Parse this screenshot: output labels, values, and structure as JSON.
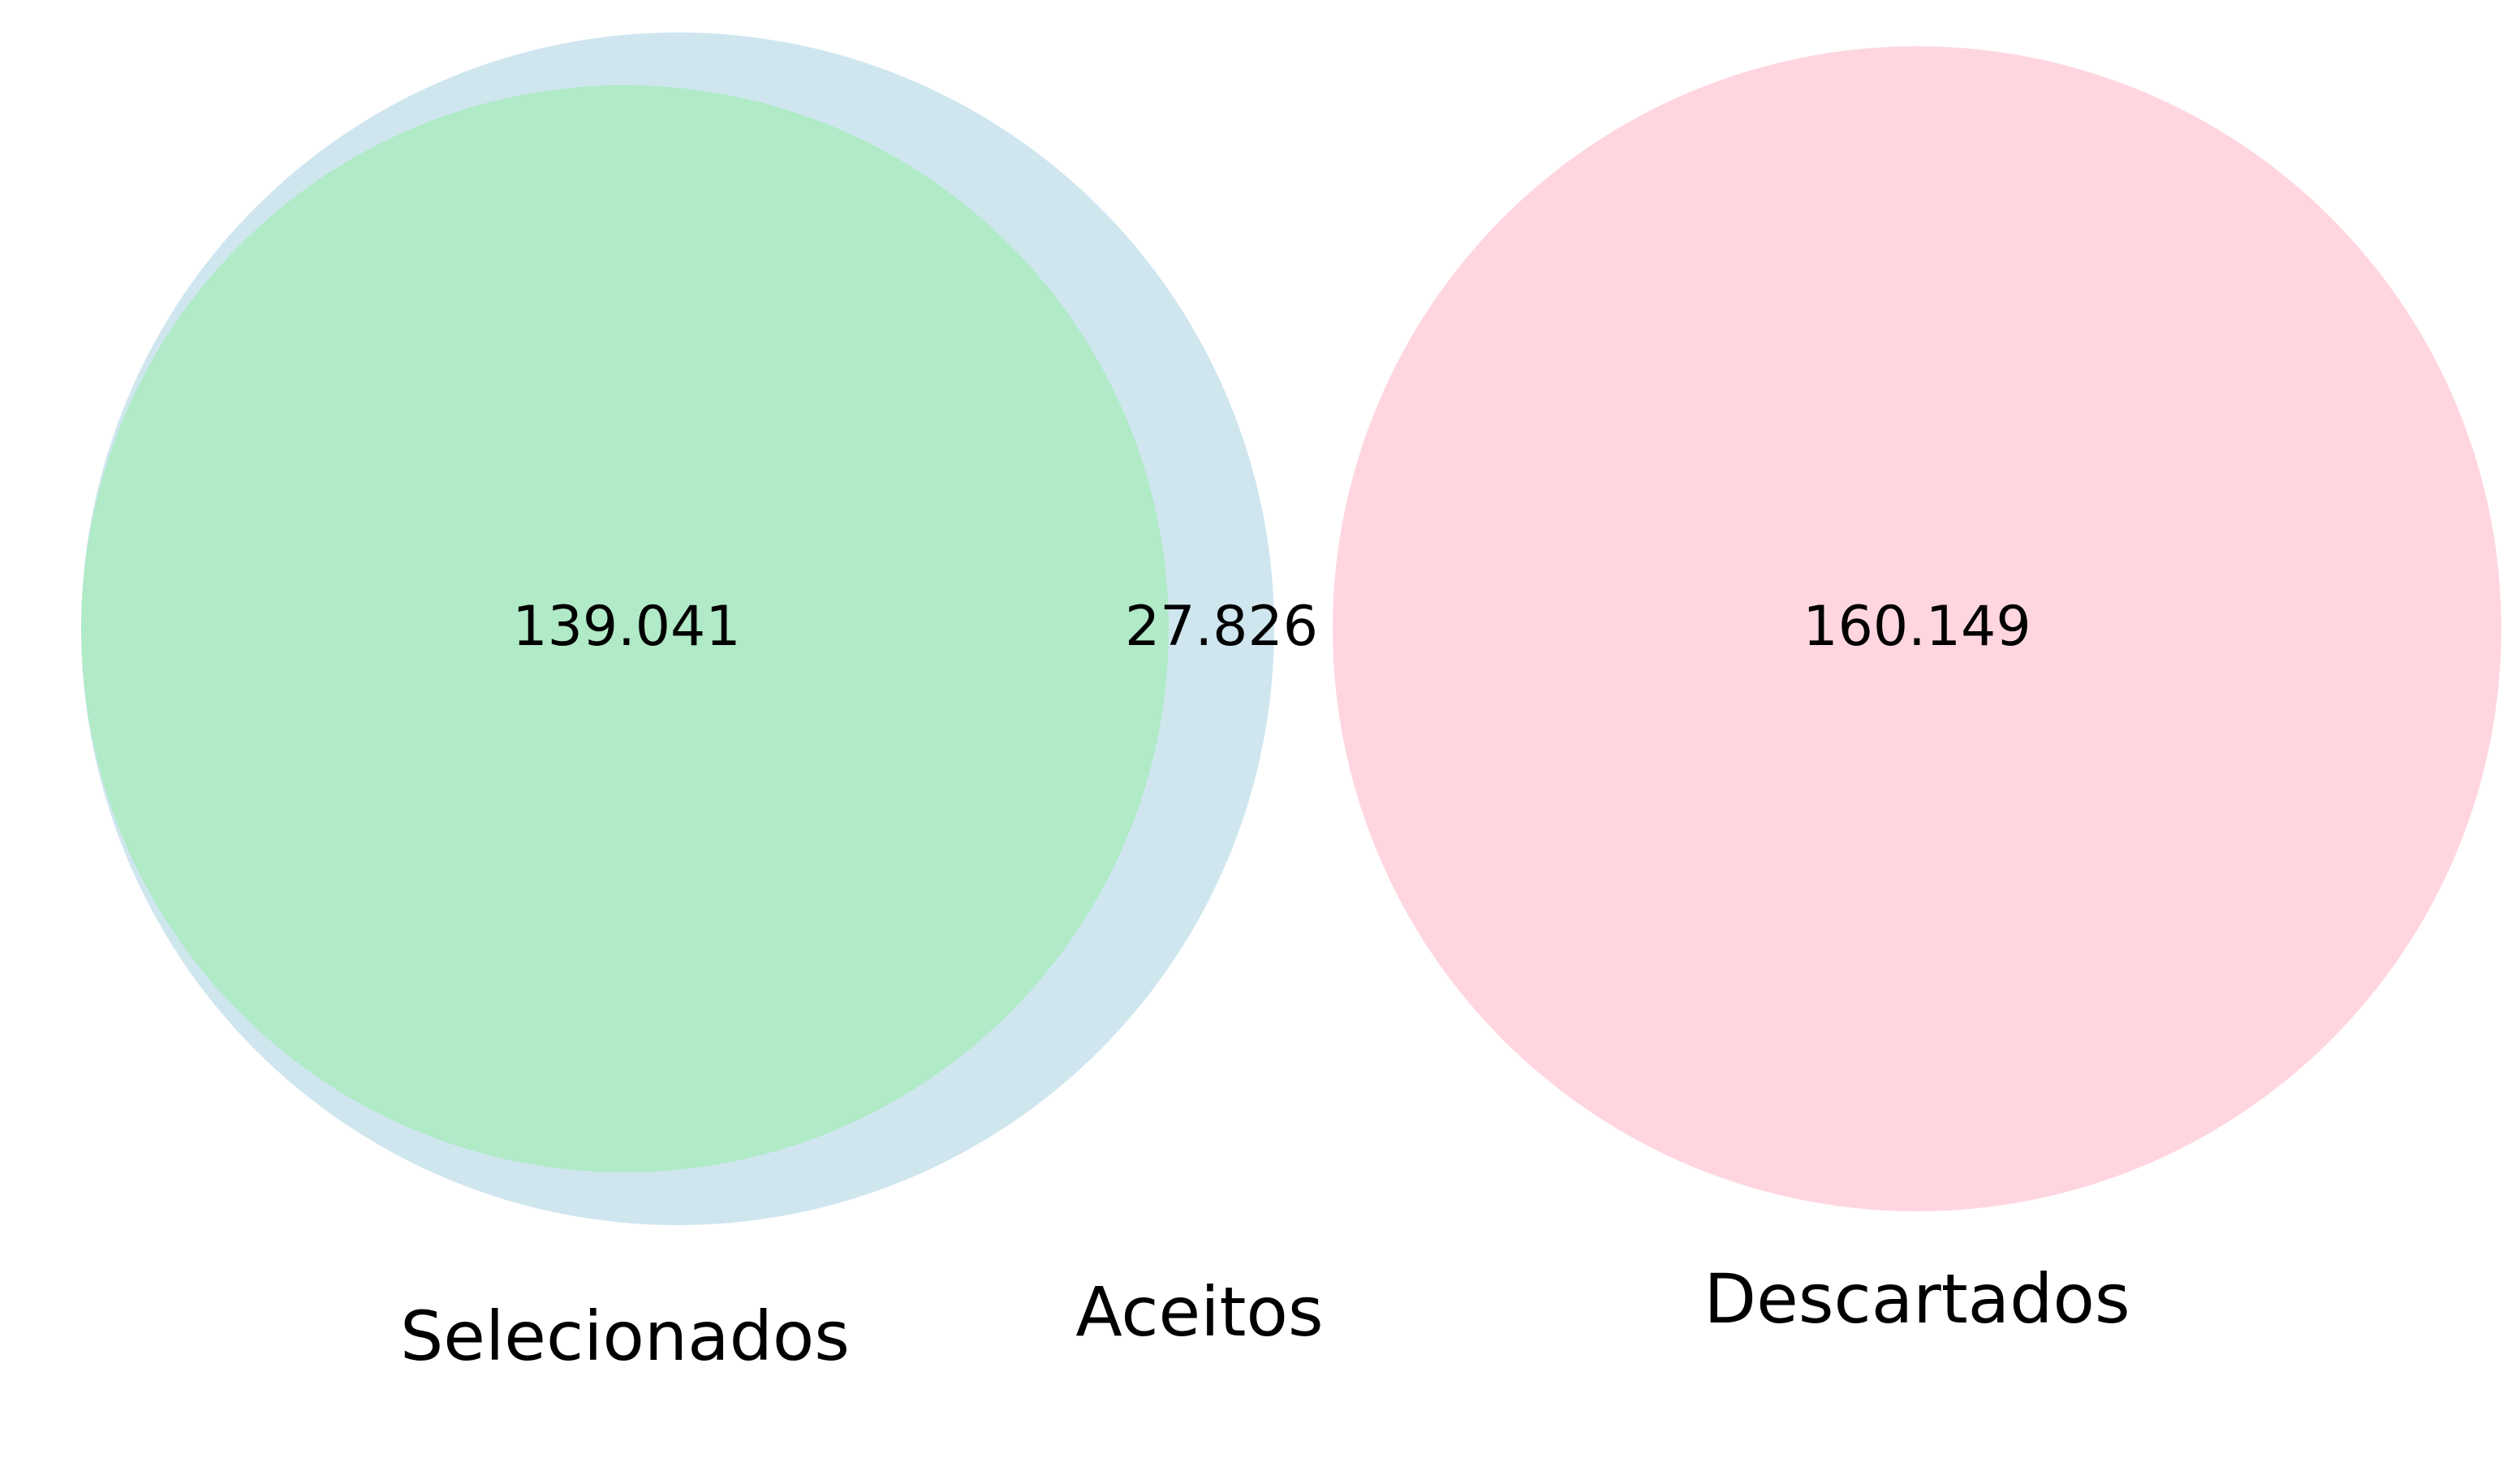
{
  "diagram": {
    "type": "venn",
    "sets": [
      {
        "key": "selecionados",
        "label": "Selecionados",
        "color": "#b0eac7"
      },
      {
        "key": "aceitos",
        "label": "Aceitos",
        "color": "#cfe6ef"
      },
      {
        "key": "descartados",
        "label": "Descartados",
        "color": "#ffd6df"
      }
    ],
    "regions": {
      "selecionados_in_aceitos": "139.041",
      "aceitos_only": "27.826",
      "descartados_only": "160.149"
    }
  }
}
